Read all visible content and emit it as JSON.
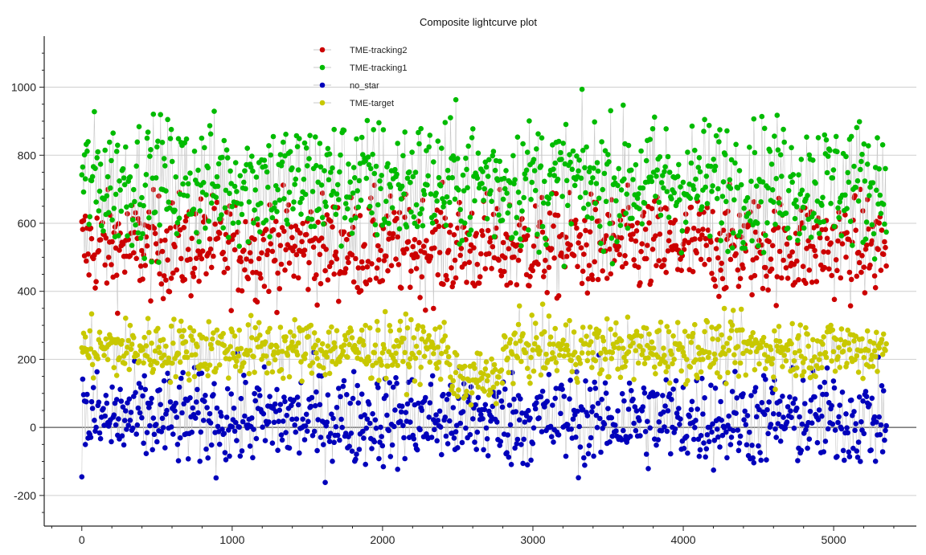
{
  "chart_data": {
    "type": "scatter",
    "title": "Composite lightcurve plot",
    "xlabel": "",
    "ylabel": "",
    "xlim": [
      -250,
      5550
    ],
    "ylim": [
      -290,
      1150
    ],
    "x_ticks": [
      0,
      1000,
      2000,
      3000,
      4000,
      5000
    ],
    "y_ticks": [
      -200,
      0,
      200,
      400,
      600,
      800,
      1000
    ],
    "x_tick_labels": [
      "0",
      "1000",
      "2000",
      "3000",
      "4000",
      "5000"
    ],
    "y_tick_labels": [
      "-200",
      "0",
      "200",
      "400",
      "600",
      "800",
      "1000"
    ],
    "grid": "horizontal",
    "legend_position": "top-center",
    "x_range": [
      0,
      5350
    ],
    "series": [
      {
        "name": "TME-tracking2",
        "color": "#cc0000",
        "mean": 530,
        "spread": 75,
        "sample": [
          660,
          610,
          560,
          500,
          480,
          600,
          570,
          540,
          450,
          520
        ]
      },
      {
        "name": "TME-tracking1",
        "color": "#00bb00",
        "mean": 720,
        "spread": 95,
        "sample": [
          860,
          780,
          720,
          650,
          700,
          820,
          740,
          690,
          600,
          760
        ]
      },
      {
        "name": "no_star",
        "color": "#0000bb",
        "mean": 25,
        "spread": 70,
        "sample": [
          40,
          10,
          -50,
          80,
          20,
          -20,
          60,
          0,
          -80,
          30
        ]
      },
      {
        "name": "TME-target",
        "color": "#c8c800",
        "mean": 230,
        "spread": 45,
        "sample": [
          260,
          240,
          220,
          210,
          250,
          200,
          230,
          270,
          190,
          240
        ]
      }
    ]
  }
}
